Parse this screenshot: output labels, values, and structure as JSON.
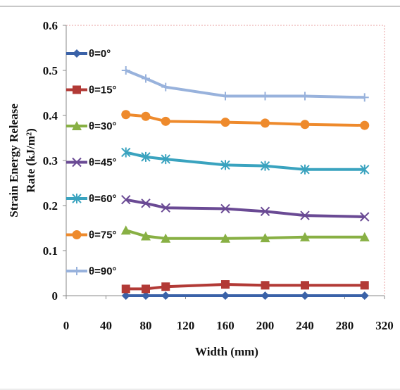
{
  "chart_data": {
    "type": "line",
    "title": "",
    "xlabel": "Width (mm)",
    "ylabel_line1": "Strain Energy Release",
    "ylabel_line2": "Rate (kJ/m²)",
    "xlim": [
      0,
      320
    ],
    "ylim": [
      0,
      0.6
    ],
    "x_ticks": [
      0,
      40,
      80,
      120,
      160,
      200,
      240,
      280,
      320
    ],
    "y_ticks": [
      0,
      0.1,
      0.2,
      0.3,
      0.4,
      0.5,
      0.6
    ],
    "x_tick_labels": [
      "0",
      "40",
      "80",
      "120",
      "160",
      "200",
      "240",
      "280",
      "320"
    ],
    "y_tick_labels": [
      "0",
      "0.1",
      "0.2",
      "0.3",
      "0.4",
      "0.5",
      "0.6"
    ],
    "x": [
      60,
      80,
      100,
      160,
      200,
      240,
      300
    ],
    "grid": false,
    "legend_position": "left-inside",
    "series": [
      {
        "name": "θ=0°",
        "color": "#3a62a8",
        "marker": "diamond",
        "values": [
          0.0,
          0.0,
          0.0,
          0.0,
          0.0,
          0.0,
          0.0
        ]
      },
      {
        "name": "θ=15°",
        "color": "#b23a36",
        "marker": "square",
        "values": [
          0.015,
          0.015,
          0.02,
          0.025,
          0.023,
          0.023,
          0.023
        ]
      },
      {
        "name": "θ=30°",
        "color": "#88b044",
        "marker": "triangle",
        "values": [
          0.145,
          0.132,
          0.127,
          0.127,
          0.128,
          0.13,
          0.13
        ]
      },
      {
        "name": "θ=45°",
        "color": "#6a4a94",
        "marker": "x",
        "values": [
          0.213,
          0.205,
          0.195,
          0.193,
          0.187,
          0.178,
          0.175
        ]
      },
      {
        "name": "θ=60°",
        "color": "#3aa3bf",
        "marker": "asterisk",
        "values": [
          0.318,
          0.308,
          0.303,
          0.29,
          0.288,
          0.28,
          0.28
        ]
      },
      {
        "name": "θ=75°",
        "color": "#ee8a2c",
        "marker": "circle",
        "values": [
          0.402,
          0.398,
          0.387,
          0.385,
          0.383,
          0.38,
          0.378
        ]
      },
      {
        "name": "θ=90°",
        "color": "#98b2dc",
        "marker": "plus",
        "values": [
          0.5,
          0.482,
          0.463,
          0.443,
          0.443,
          0.443,
          0.44
        ]
      }
    ]
  }
}
